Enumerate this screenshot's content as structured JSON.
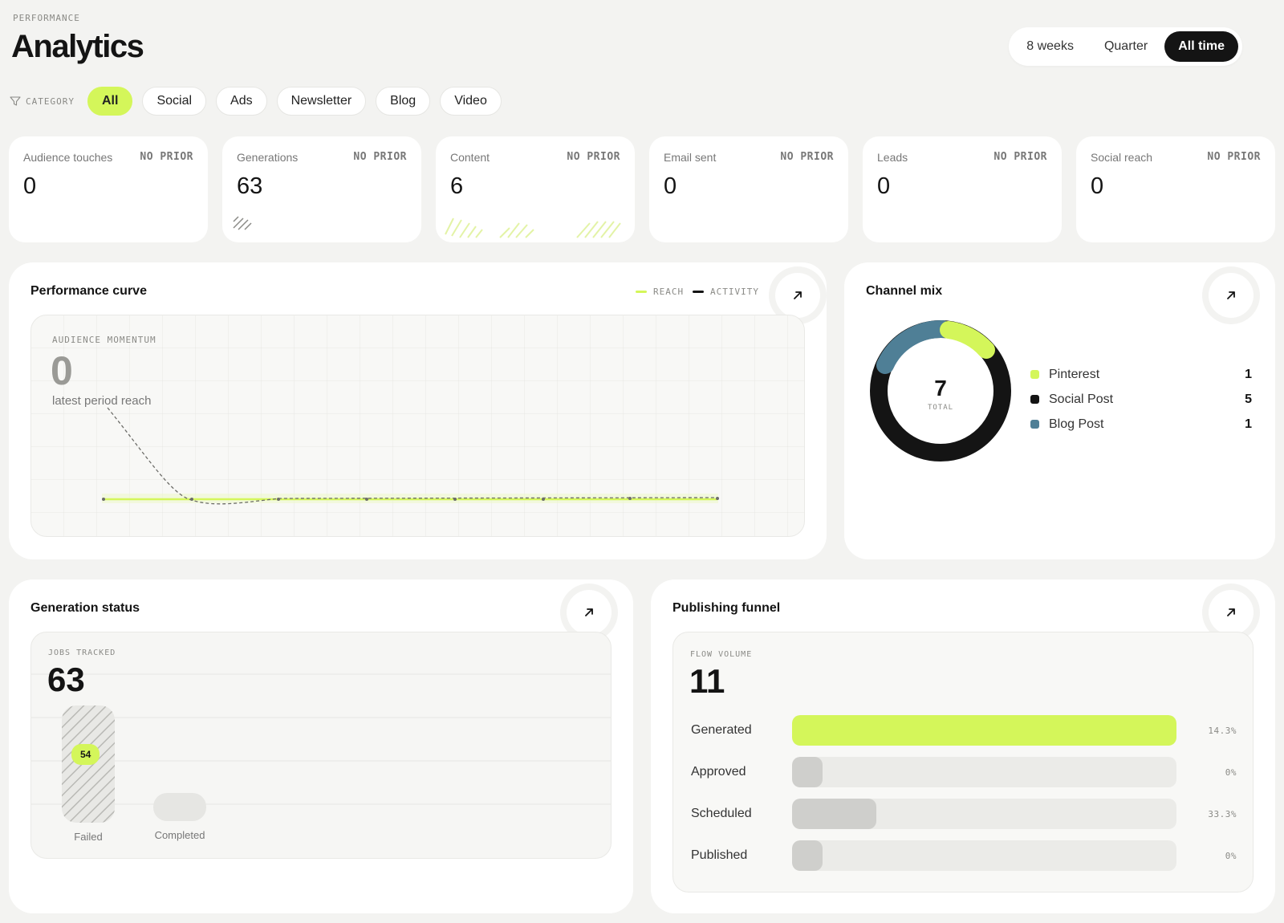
{
  "header": {
    "eyebrow": "PERFORMANCE",
    "title": "Analytics",
    "ranges": [
      "8 weeks",
      "Quarter",
      "All time"
    ],
    "active_range": "All time"
  },
  "filters": {
    "label": "CATEGORY",
    "chips": [
      "All",
      "Social",
      "Ads",
      "Newsletter",
      "Blog",
      "Video"
    ],
    "active": "All"
  },
  "kpis": [
    {
      "label": "Audience touches",
      "prior": "NO PRIOR",
      "value": "0"
    },
    {
      "label": "Generations",
      "prior": "NO PRIOR",
      "value": "63"
    },
    {
      "label": "Content",
      "prior": "NO PRIOR",
      "value": "6"
    },
    {
      "label": "Email sent",
      "prior": "NO PRIOR",
      "value": "0"
    },
    {
      "label": "Leads",
      "prior": "NO PRIOR",
      "value": "0"
    },
    {
      "label": "Social reach",
      "prior": "NO PRIOR",
      "value": "0"
    }
  ],
  "performance": {
    "title": "Performance curve",
    "legend": {
      "reach": "REACH",
      "activity": "ACTIVITY"
    },
    "eyebrow": "AUDIENCE MOMENTUM",
    "value": "0",
    "caption": "latest period reach"
  },
  "channel_mix": {
    "title": "Channel mix",
    "total": "7",
    "total_label": "TOTAL",
    "items": [
      {
        "name": "Pinterest",
        "count": "1",
        "color": "#d4f65a"
      },
      {
        "name": "Social Post",
        "count": "5",
        "color": "#141414"
      },
      {
        "name": "Blog Post",
        "count": "1",
        "color": "#4f7f96"
      }
    ]
  },
  "generation": {
    "title": "Generation status",
    "eyebrow": "JOBS TRACKED",
    "value": "63",
    "bars": [
      {
        "label": "Failed",
        "badge": "54",
        "value": 54
      },
      {
        "label": "Completed",
        "badge": "",
        "value": 9
      }
    ]
  },
  "funnel": {
    "title": "Publishing funnel",
    "eyebrow": "FLOW VOLUME",
    "value": "11",
    "rows": [
      {
        "label": "Generated",
        "pct": "14.3%",
        "fraction": 1.0,
        "accent": true
      },
      {
        "label": "Approved",
        "pct": "0%",
        "fraction": 0.0,
        "accent": false
      },
      {
        "label": "Scheduled",
        "pct": "33.3%",
        "fraction": 0.22,
        "accent": false
      },
      {
        "label": "Published",
        "pct": "0%",
        "fraction": 0.0,
        "accent": false
      }
    ]
  },
  "colors": {
    "accent": "#d4f65a",
    "dark": "#141414",
    "blue": "#4f7f96"
  }
}
